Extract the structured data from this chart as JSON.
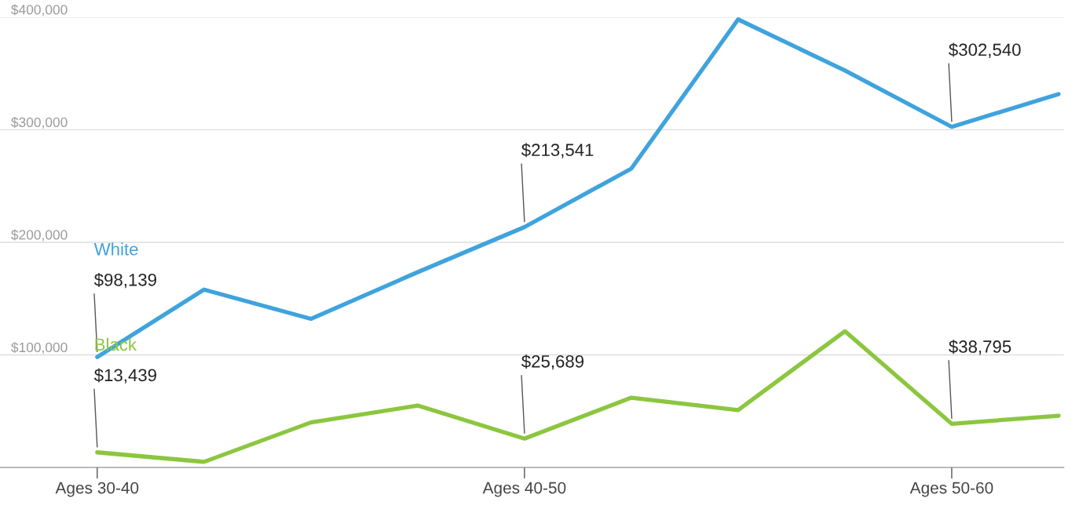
{
  "chart_data": {
    "type": "line",
    "categories": [
      "Ages 30-40",
      null,
      null,
      null,
      "Ages 40-50",
      null,
      null,
      null,
      "Ages 50-60",
      null
    ],
    "series": [
      {
        "name": "White",
        "color": "#3fa3dd",
        "values": [
          98139,
          158000,
          132000,
          173500,
          213541,
          265500,
          398000,
          352600,
          302540,
          331700
        ],
        "value_labels": [
          "$98,139",
          null,
          null,
          null,
          "$213,541",
          null,
          null,
          null,
          "$302,540",
          null
        ]
      },
      {
        "name": "Black",
        "color": "#8cc63f",
        "values": [
          13439,
          5000,
          40000,
          55000,
          25689,
          62000,
          51000,
          121000,
          38795,
          46000
        ],
        "value_labels": [
          "$13,439",
          null,
          null,
          null,
          "$25,689",
          null,
          null,
          null,
          "$38,795",
          null
        ]
      }
    ],
    "ylim": [
      0,
      400000
    ],
    "yticks": [
      {
        "value": 100000,
        "label": "$100,000"
      },
      {
        "value": 200000,
        "label": "$200,000"
      },
      {
        "value": 300000,
        "label": "$300,000"
      },
      {
        "value": 400000,
        "label": "$400,000"
      }
    ],
    "grid": "y"
  }
}
